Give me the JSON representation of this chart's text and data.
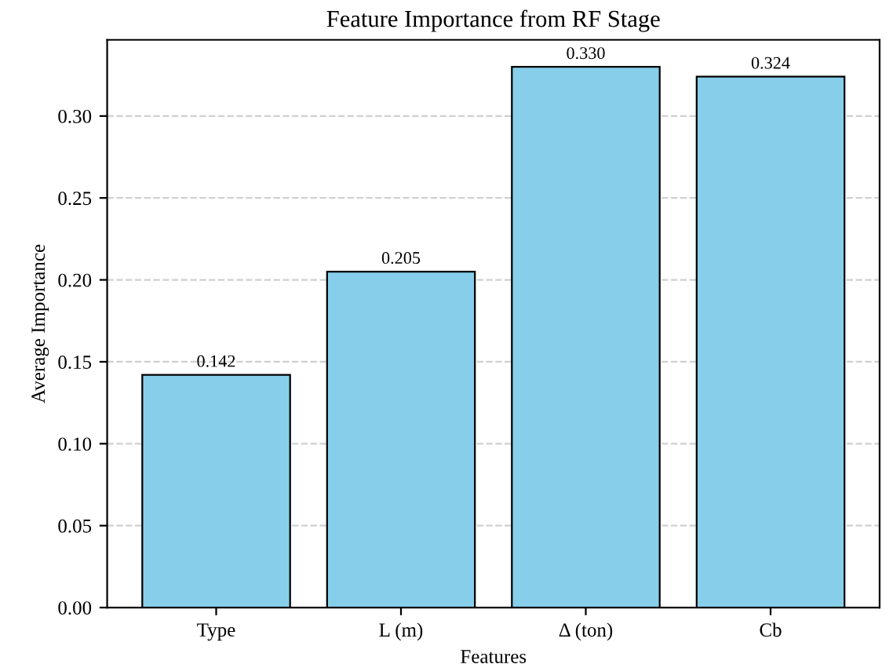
{
  "chart_data": {
    "type": "bar",
    "title": "Feature Importance from RF Stage",
    "xlabel": "Features",
    "ylabel": "Average Importance",
    "categories": [
      "Type",
      "L (m)",
      "Δ (ton)",
      "Cb"
    ],
    "values": [
      0.142,
      0.205,
      0.33,
      0.324
    ],
    "color": "#87ceeb",
    "value_labels": [
      "0.142",
      "0.205",
      "0.330",
      "0.324"
    ],
    "ylim": [
      0,
      0.3465
    ],
    "yticks": [
      {
        "value": 0,
        "label": "0.00"
      },
      {
        "value": 0.05,
        "label": "0.05"
      },
      {
        "value": 0.1,
        "label": "0.10"
      },
      {
        "value": 0.15,
        "label": "0.15"
      },
      {
        "value": 0.2,
        "label": "0.20"
      },
      {
        "value": 0.25,
        "label": "0.25"
      },
      {
        "value": 0.3,
        "label": "0.30"
      }
    ],
    "grid": "y",
    "legend": false
  }
}
